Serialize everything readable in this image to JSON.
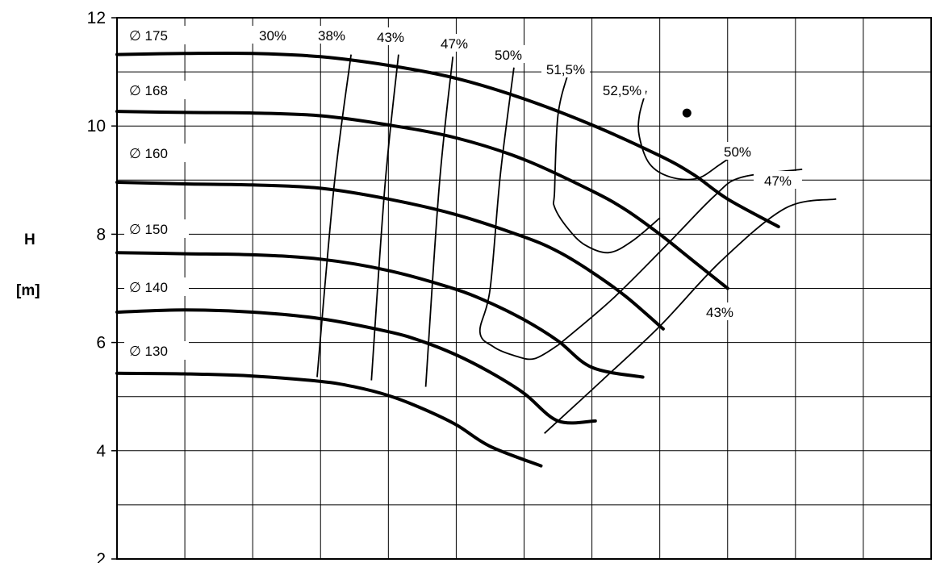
{
  "chart_data": {
    "type": "line",
    "title": "",
    "xlabel": "",
    "ylabel": "H",
    "yunit": "[m]",
    "ylim": [
      2,
      12
    ],
    "yticks": [
      2,
      4,
      6,
      8,
      10,
      12
    ],
    "grid": true,
    "impeller_curves": [
      {
        "name": "∅ 175",
        "points": [
          [
            0,
            11.32
          ],
          [
            2,
            11.34
          ],
          [
            4,
            11.34
          ],
          [
            6,
            11.28
          ],
          [
            8,
            11.12
          ],
          [
            10,
            10.88
          ],
          [
            12,
            10.5
          ],
          [
            14,
            10.02
          ],
          [
            16,
            9.45
          ],
          [
            17,
            9.1
          ],
          [
            18,
            8.65
          ],
          [
            19.5,
            8.14
          ]
        ]
      },
      {
        "name": "∅ 168",
        "points": [
          [
            0,
            10.27
          ],
          [
            2,
            10.25
          ],
          [
            4,
            10.24
          ],
          [
            6,
            10.19
          ],
          [
            8,
            10.02
          ],
          [
            10,
            9.78
          ],
          [
            12,
            9.38
          ],
          [
            14,
            8.8
          ],
          [
            15,
            8.45
          ],
          [
            16,
            8.0
          ],
          [
            17,
            7.5
          ],
          [
            18,
            7.0
          ]
        ]
      },
      {
        "name": "∅ 160",
        "points": [
          [
            0,
            8.96
          ],
          [
            2,
            8.93
          ],
          [
            4,
            8.91
          ],
          [
            6,
            8.85
          ],
          [
            8,
            8.65
          ],
          [
            10,
            8.36
          ],
          [
            12,
            7.95
          ],
          [
            13,
            7.68
          ],
          [
            14,
            7.3
          ],
          [
            15,
            6.85
          ],
          [
            16.1,
            6.25
          ]
        ]
      },
      {
        "name": "∅ 150",
        "points": [
          [
            0,
            7.66
          ],
          [
            2,
            7.64
          ],
          [
            4,
            7.62
          ],
          [
            6,
            7.54
          ],
          [
            8,
            7.33
          ],
          [
            10,
            6.98
          ],
          [
            11,
            6.73
          ],
          [
            12,
            6.42
          ],
          [
            13,
            6.03
          ],
          [
            14,
            5.54
          ],
          [
            15.5,
            5.36
          ]
        ]
      },
      {
        "name": "∅ 140",
        "points": [
          [
            0,
            6.56
          ],
          [
            2,
            6.6
          ],
          [
            4,
            6.56
          ],
          [
            6,
            6.44
          ],
          [
            8,
            6.2
          ],
          [
            9,
            6.02
          ],
          [
            10,
            5.77
          ],
          [
            11,
            5.45
          ],
          [
            12,
            5.06
          ],
          [
            13,
            4.55
          ],
          [
            14.1,
            4.55
          ]
        ]
      },
      {
        "name": "∅ 130",
        "points": [
          [
            0,
            5.43
          ],
          [
            2,
            5.42
          ],
          [
            4,
            5.38
          ],
          [
            6,
            5.28
          ],
          [
            7,
            5.18
          ],
          [
            8,
            5.02
          ],
          [
            9,
            4.78
          ],
          [
            10,
            4.48
          ],
          [
            11,
            4.08
          ],
          [
            12.5,
            3.72
          ]
        ]
      }
    ],
    "efficiency_lines": [
      {
        "label": "30%",
        "points": [
          [
            6.9,
            11.32
          ],
          [
            6.4,
            8.9
          ],
          [
            5.9,
            5.36
          ]
        ]
      },
      {
        "label": "38%",
        "points": [
          [
            8.3,
            11.32
          ],
          [
            7.9,
            8.9
          ],
          [
            7.5,
            5.3
          ]
        ]
      },
      {
        "label": "43%",
        "points": [
          [
            9.9,
            11.28
          ],
          [
            9.5,
            8.9
          ],
          [
            9.1,
            5.18
          ]
        ]
      },
      {
        "label": "47%",
        "points": [
          [
            11.7,
            11.08
          ],
          [
            11.3,
            9.1
          ],
          [
            11.0,
            7.0
          ],
          [
            10.7,
            6.2
          ],
          [
            11.1,
            5.92
          ],
          [
            11.7,
            5.76
          ],
          [
            12.3,
            5.7
          ],
          [
            13.0,
            5.95
          ]
        ]
      },
      {
        "label": "50%",
        "points": [
          [
            13.3,
            10.98
          ],
          [
            13.0,
            10.2
          ],
          [
            12.9,
            8.8
          ],
          [
            12.9,
            8.5
          ],
          [
            13.3,
            8.1
          ],
          [
            13.8,
            7.8
          ],
          [
            14.5,
            7.66
          ],
          [
            15.2,
            7.88
          ],
          [
            16.0,
            8.3
          ]
        ]
      },
      {
        "label": "51,5%",
        "points": [
          [
            15.6,
            10.65
          ],
          [
            15.4,
            10.2
          ],
          [
            15.4,
            9.8
          ],
          [
            15.7,
            9.3
          ],
          [
            16.3,
            9.06
          ],
          [
            17.1,
            9.03
          ],
          [
            17.8,
            9.3
          ],
          [
            18.5,
            9.6
          ]
        ]
      },
      {
        "label": "50%",
        "points": [
          [
            13.0,
            5.95
          ],
          [
            14.6,
            6.8
          ],
          [
            16.2,
            7.8
          ],
          [
            17.6,
            8.7
          ],
          [
            18.4,
            9.05
          ],
          [
            20.2,
            9.2
          ]
        ]
      },
      {
        "label": "47%",
        "points": [
          [
            12.6,
            4.32
          ],
          [
            14.3,
            5.3
          ],
          [
            16.0,
            6.3
          ],
          [
            17.8,
            7.5
          ],
          [
            19.7,
            8.48
          ],
          [
            21.2,
            8.65
          ]
        ]
      },
      {
        "label": "43%",
        "points": [
          [
            20.2,
            6.38
          ]
        ]
      }
    ],
    "best_efficiency_point": {
      "label": "52,5%",
      "x": 16.8,
      "y": 10.24
    }
  }
}
